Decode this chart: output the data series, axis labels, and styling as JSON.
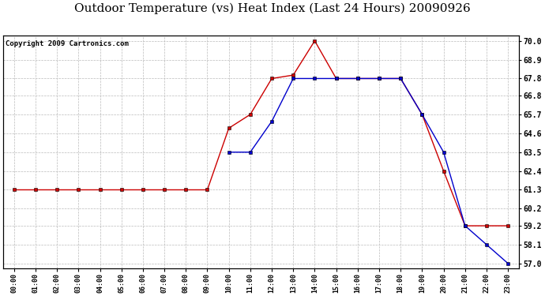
{
  "title": "Outdoor Temperature (vs) Heat Index (Last 24 Hours) 20090926",
  "copyright": "Copyright 2009 Cartronics.com",
  "x_labels": [
    "00:00",
    "01:00",
    "02:00",
    "03:00",
    "04:00",
    "05:00",
    "06:00",
    "07:00",
    "08:00",
    "09:00",
    "10:00",
    "11:00",
    "12:00",
    "13:00",
    "14:00",
    "15:00",
    "16:00",
    "17:00",
    "18:00",
    "19:00",
    "20:00",
    "21:00",
    "22:00",
    "23:00"
  ],
  "red_values": [
    61.3,
    61.3,
    61.3,
    61.3,
    61.3,
    61.3,
    61.3,
    61.3,
    61.3,
    61.3,
    64.9,
    65.7,
    67.8,
    68.0,
    70.0,
    67.8,
    67.8,
    67.8,
    67.8,
    65.7,
    62.4,
    59.2,
    59.2,
    59.2
  ],
  "blue_values": [
    null,
    null,
    null,
    null,
    null,
    null,
    null,
    null,
    null,
    null,
    63.5,
    63.5,
    65.3,
    67.8,
    67.8,
    67.8,
    67.8,
    67.8,
    67.8,
    65.7,
    63.5,
    59.2,
    58.1,
    57.0
  ],
  "ylim_min": 57.0,
  "ylim_max": 70.0,
  "yticks": [
    70.0,
    68.9,
    67.8,
    66.8,
    65.7,
    64.6,
    63.5,
    62.4,
    61.3,
    60.2,
    59.2,
    58.1,
    57.0
  ],
  "red_color": "#cc0000",
  "blue_color": "#0000cc",
  "grid_color": "#bbbbbb",
  "bg_color": "#ffffff",
  "plot_bg_color": "#ffffff",
  "title_fontsize": 11,
  "copyright_fontsize": 6.5
}
